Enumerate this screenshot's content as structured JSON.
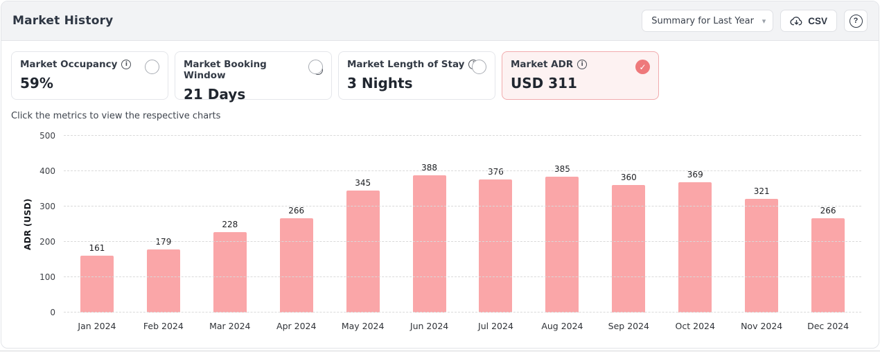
{
  "header": {
    "title": "Market History",
    "range_select": {
      "value": "Summary for Last Year"
    },
    "csv_button_label": "CSV"
  },
  "icons": {
    "chevron_down": "▾",
    "question": "?",
    "check": "✓",
    "info": "i"
  },
  "metrics": [
    {
      "label": "Market Occupancy",
      "value": "59%",
      "selected": false
    },
    {
      "label": "Market Booking Window",
      "value": "21 Days",
      "selected": false
    },
    {
      "label": "Market Length of Stay",
      "value": "3 Nights",
      "selected": false
    },
    {
      "label": "Market ADR",
      "value": "USD 311",
      "selected": true
    }
  ],
  "hint": "Click the metrics to view the respective charts",
  "colors": {
    "accent": "#ee797b",
    "selected_card_bg": "#fdf2f2",
    "selected_card_border": "#f1abad"
  },
  "chart_data": {
    "type": "bar",
    "categories": [
      "Jan 2024",
      "Feb 2024",
      "Mar 2024",
      "Apr 2024",
      "May 2024",
      "Jun 2024",
      "Jul 2024",
      "Aug 2024",
      "Sep 2024",
      "Oct 2024",
      "Nov 2024",
      "Dec 2024"
    ],
    "values": [
      161,
      179,
      228,
      266,
      345,
      388,
      376,
      385,
      360,
      369,
      321,
      266
    ],
    "title": "",
    "xlabel": "",
    "ylabel": "ADR (USD)",
    "ylim": [
      0,
      500
    ],
    "yticks": [
      0,
      100,
      200,
      300,
      400,
      500
    ],
    "grid": "horizontal-dashed",
    "legend": "none",
    "value_labels": true,
    "bar_color": "#faa6a8"
  }
}
